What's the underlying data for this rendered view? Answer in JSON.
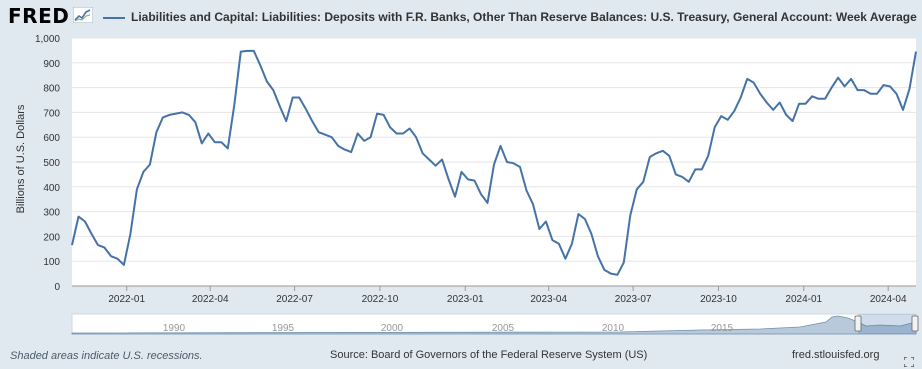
{
  "header": {
    "logo": "FRED",
    "title": "Liabilities and Capital: Liabilities: Deposits with F.R. Banks, Other Than Reserve Balances: U.S. Treasury, General Account: Week Average"
  },
  "footer": {
    "recession_note": "Shaded areas indicate U.S. recessions.",
    "source": "Source: Board of Governors of the Federal Reserve System (US)",
    "site": "fred.stlouisfed.org"
  },
  "colors": {
    "series": "#4572a7",
    "background": "#e1e9f0",
    "plot": "#ffffff"
  },
  "icons": {
    "expand": "expand-icon"
  },
  "chart_data": {
    "type": "line",
    "title": "Liabilities and Capital: Liabilities: Deposits with F.R. Banks, Other Than Reserve Balances: U.S. Treasury, General Account: Week Average",
    "ylabel": "Billions of U.S. Dollars",
    "xlabel": "",
    "ylim": [
      0,
      1000
    ],
    "yticks": [
      0,
      100,
      200,
      300,
      400,
      500,
      600,
      700,
      800,
      900,
      1000
    ],
    "ytick_labels": [
      "0",
      "100",
      "200",
      "300",
      "400",
      "500",
      "600",
      "700",
      "800",
      "900",
      "1,000"
    ],
    "xlim": [
      "2021-11-03",
      "2024-05-01"
    ],
    "xticks": [
      "2022-01-01",
      "2022-04-01",
      "2022-07-01",
      "2022-10-01",
      "2023-01-01",
      "2023-04-01",
      "2023-07-01",
      "2023-10-01",
      "2024-01-01",
      "2024-04-01"
    ],
    "xtick_labels": [
      "2022-01",
      "2022-04",
      "2022-07",
      "2022-10",
      "2023-01",
      "2023-04",
      "2023-07",
      "2023-10",
      "2024-01",
      "2024-04"
    ],
    "grid": true,
    "legend": "top",
    "series": [
      {
        "name": "Liabilities and Capital: Liabilities: Deposits with F.R. Banks, Other Than Reserve Balances: U.S. Treasury, General Account: Week Average",
        "x": [
          "2021-11-03",
          "2021-11-10",
          "2021-11-17",
          "2021-11-24",
          "2021-12-01",
          "2021-12-08",
          "2021-12-15",
          "2021-12-22",
          "2021-12-29",
          "2022-01-05",
          "2022-01-12",
          "2022-01-19",
          "2022-01-26",
          "2022-02-02",
          "2022-02-09",
          "2022-02-16",
          "2022-02-23",
          "2022-03-02",
          "2022-03-09",
          "2022-03-16",
          "2022-03-23",
          "2022-03-30",
          "2022-04-06",
          "2022-04-13",
          "2022-04-20",
          "2022-04-27",
          "2022-05-04",
          "2022-05-11",
          "2022-05-18",
          "2022-05-25",
          "2022-06-01",
          "2022-06-08",
          "2022-06-15",
          "2022-06-22",
          "2022-06-29",
          "2022-07-06",
          "2022-07-13",
          "2022-07-20",
          "2022-07-27",
          "2022-08-03",
          "2022-08-10",
          "2022-08-17",
          "2022-08-24",
          "2022-08-31",
          "2022-09-07",
          "2022-09-14",
          "2022-09-21",
          "2022-09-28",
          "2022-10-05",
          "2022-10-12",
          "2022-10-19",
          "2022-10-26",
          "2022-11-02",
          "2022-11-09",
          "2022-11-16",
          "2022-11-23",
          "2022-11-30",
          "2022-12-07",
          "2022-12-14",
          "2022-12-21",
          "2022-12-28",
          "2023-01-04",
          "2023-01-11",
          "2023-01-18",
          "2023-01-25",
          "2023-02-01",
          "2023-02-08",
          "2023-02-15",
          "2023-02-22",
          "2023-03-01",
          "2023-03-08",
          "2023-03-15",
          "2023-03-22",
          "2023-03-29",
          "2023-04-05",
          "2023-04-12",
          "2023-04-19",
          "2023-04-26",
          "2023-05-03",
          "2023-05-10",
          "2023-05-17",
          "2023-05-24",
          "2023-05-31",
          "2023-06-07",
          "2023-06-14",
          "2023-06-21",
          "2023-06-28",
          "2023-07-05",
          "2023-07-12",
          "2023-07-19",
          "2023-07-26",
          "2023-08-02",
          "2023-08-09",
          "2023-08-16",
          "2023-08-23",
          "2023-08-30",
          "2023-09-06",
          "2023-09-13",
          "2023-09-20",
          "2023-09-27",
          "2023-10-04",
          "2023-10-11",
          "2023-10-18",
          "2023-10-25",
          "2023-11-01",
          "2023-11-08",
          "2023-11-15",
          "2023-11-22",
          "2023-11-29",
          "2023-12-06",
          "2023-12-13",
          "2023-12-20",
          "2023-12-27",
          "2024-01-03",
          "2024-01-10",
          "2024-01-17",
          "2024-01-24",
          "2024-01-31",
          "2024-02-07",
          "2024-02-14",
          "2024-02-21",
          "2024-02-28",
          "2024-03-06",
          "2024-03-13",
          "2024-03-20",
          "2024-03-27",
          "2024-04-03",
          "2024-04-10",
          "2024-04-17",
          "2024-04-24",
          "2024-05-01"
        ],
        "values": [
          165,
          280,
          260,
          210,
          165,
          155,
          120,
          110,
          85,
          210,
          390,
          460,
          490,
          620,
          680,
          690,
          695,
          700,
          690,
          660,
          575,
          615,
          580,
          580,
          555,
          730,
          945,
          948,
          948,
          890,
          825,
          790,
          725,
          665,
          760,
          760,
          715,
          665,
          620,
          610,
          600,
          565,
          550,
          540,
          615,
          585,
          600,
          695,
          690,
          640,
          615,
          615,
          635,
          600,
          535,
          510,
          485,
          510,
          430,
          360,
          460,
          430,
          425,
          370,
          335,
          490,
          565,
          500,
          495,
          480,
          385,
          330,
          230,
          260,
          185,
          170,
          110,
          170,
          290,
          270,
          210,
          120,
          65,
          50,
          45,
          95,
          285,
          390,
          420,
          520,
          535,
          545,
          525,
          450,
          440,
          420,
          470,
          470,
          525,
          640,
          685,
          670,
          705,
          760,
          835,
          820,
          775,
          740,
          710,
          740,
          690,
          665,
          735,
          735,
          765,
          755,
          755,
          800,
          840,
          805,
          835,
          790,
          790,
          775,
          775,
          810,
          805,
          775,
          710,
          795,
          945
        ]
      }
    ]
  }
}
